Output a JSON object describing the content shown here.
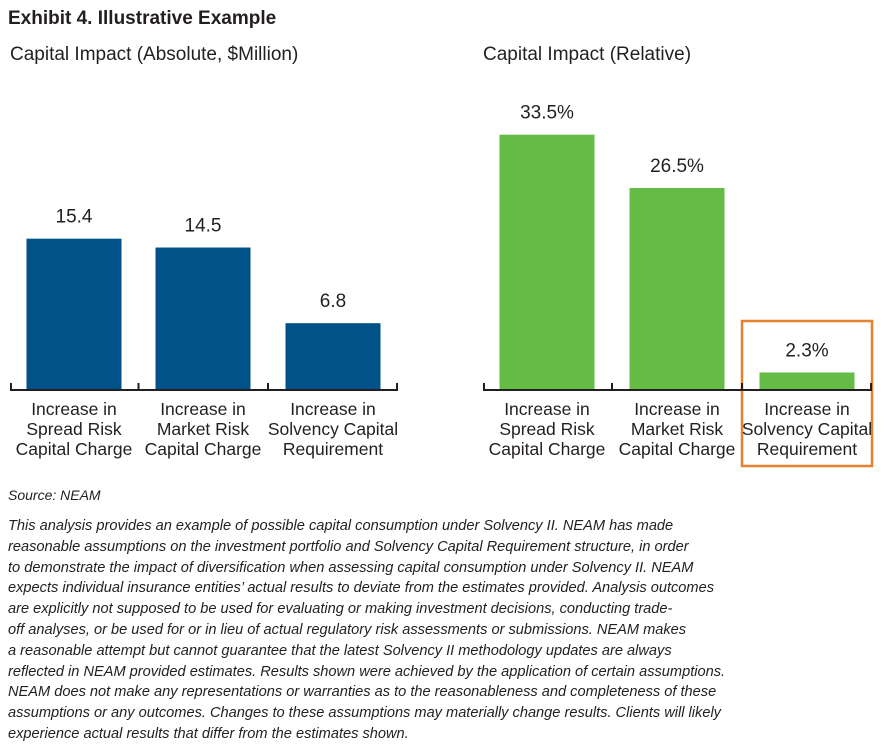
{
  "exhibit_title": "Exhibit 4. Illustrative Example",
  "colors": {
    "absolute": "#005288",
    "relative": "#64bc46",
    "highlight": "#e8812e",
    "axis": "#231f20"
  },
  "chart_data": [
    {
      "type": "bar",
      "title": "Capital Impact (Absolute, $Million)",
      "categories": [
        [
          "Increase in",
          "Spread Risk",
          "Capital Charge"
        ],
        [
          "Increase in",
          "Market Risk",
          "Capital Charge"
        ],
        [
          "Increase in",
          "Solvency Capital",
          "Requirement"
        ]
      ],
      "values": [
        15.4,
        14.5,
        6.8
      ],
      "value_labels": [
        "15.4",
        "14.5",
        "6.8"
      ],
      "ylim": [
        0,
        28.7
      ],
      "highlight_index": null
    },
    {
      "type": "bar",
      "title": "Capital Impact (Relative)",
      "categories": [
        [
          "Increase in",
          "Spread Risk",
          "Capital Charge"
        ],
        [
          "Increase in",
          "Market Risk",
          "Capital Charge"
        ],
        [
          "Increase in",
          "Solvency Capital",
          "Requirement"
        ]
      ],
      "values": [
        33.5,
        26.5,
        2.3
      ],
      "value_labels": [
        "33.5%",
        "26.5%",
        "2.3%"
      ],
      "ylim": [
        0,
        37.0
      ],
      "highlight_index": 2
    }
  ],
  "source": "Source: NEAM",
  "disclaimer_lines": [
    "This analysis provides an example of possible capital consumption under Solvency II.  NEAM has made",
    "reasonable assumptions on the investment portfolio and Solvency Capital Requirement structure, in order",
    "to demonstrate the impact of diversification when assessing capital consumption under Solvency II. NEAM",
    "expects individual insurance entities’ actual results to deviate from the estimates provided. Analysis outcomes",
    "are explicitly not supposed to be used for evaluating or making investment decisions, conducting trade-",
    "off analyses, or be used for or in lieu of actual regulatory risk assessments or submissions. NEAM makes",
    "a reasonable attempt but cannot guarantee that the latest Solvency II methodology updates are always",
    "reflected in NEAM provided estimates. Results shown were achieved by the application of certain assumptions.",
    "NEAM does not make any representations or warranties as to the reasonableness and completeness of these",
    "assumptions or any outcomes. Changes to these assumptions may materially change results. Clients will likely",
    "experience actual results that differ from the estimates shown."
  ]
}
